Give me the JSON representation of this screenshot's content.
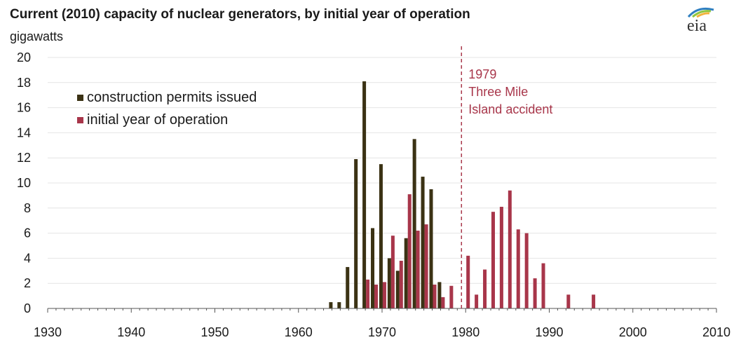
{
  "header": {
    "title": "Current (2010) capacity of nuclear generators, by initial year of operation",
    "unit": "gigawatts",
    "logo_text": "eia"
  },
  "colors": {
    "construction": "#3b3214",
    "operation": "#a8364a",
    "annotation": "#a8364a",
    "grid": "#e4e4e4",
    "axis": "#555555"
  },
  "chart_data": {
    "type": "bar",
    "title": "Current (2010) capacity of nuclear generators, by initial year of operation",
    "ylabel": "gigawatts",
    "xlabel": "",
    "xlim": [
      1930,
      2010
    ],
    "ylim": [
      0,
      20
    ],
    "x_ticks": [
      1930,
      1940,
      1950,
      1960,
      1970,
      1980,
      1990,
      2000,
      2010
    ],
    "y_ticks": [
      0,
      2,
      4,
      6,
      8,
      10,
      12,
      14,
      16,
      18,
      20
    ],
    "grid": true,
    "legend_position": "top-left",
    "series": [
      {
        "name": "construction permits issued",
        "key": "construction",
        "points": [
          {
            "year": 1964,
            "value": 0.5
          },
          {
            "year": 1965,
            "value": 0.5
          },
          {
            "year": 1966,
            "value": 3.3
          },
          {
            "year": 1967,
            "value": 11.9
          },
          {
            "year": 1968,
            "value": 18.1
          },
          {
            "year": 1969,
            "value": 6.4
          },
          {
            "year": 1970,
            "value": 11.5
          },
          {
            "year": 1971,
            "value": 4.0
          },
          {
            "year": 1972,
            "value": 3.0
          },
          {
            "year": 1973,
            "value": 5.6
          },
          {
            "year": 1974,
            "value": 13.5
          },
          {
            "year": 1975,
            "value": 10.5
          },
          {
            "year": 1976,
            "value": 9.5
          },
          {
            "year": 1977,
            "value": 2.1
          },
          {
            "year": 1978,
            "value": 0.0
          }
        ]
      },
      {
        "name": "initial year of operation",
        "key": "operation",
        "points": [
          {
            "year": 1968,
            "value": 2.3
          },
          {
            "year": 1969,
            "value": 1.9
          },
          {
            "year": 1970,
            "value": 2.1
          },
          {
            "year": 1971,
            "value": 5.8
          },
          {
            "year": 1972,
            "value": 3.8
          },
          {
            "year": 1973,
            "value": 9.1
          },
          {
            "year": 1974,
            "value": 6.2
          },
          {
            "year": 1975,
            "value": 6.7
          },
          {
            "year": 1976,
            "value": 1.9
          },
          {
            "year": 1977,
            "value": 0.9
          },
          {
            "year": 1978,
            "value": 1.8
          },
          {
            "year": 1980,
            "value": 4.2
          },
          {
            "year": 1981,
            "value": 1.1
          },
          {
            "year": 1982,
            "value": 3.1
          },
          {
            "year": 1983,
            "value": 7.7
          },
          {
            "year": 1984,
            "value": 8.1
          },
          {
            "year": 1985,
            "value": 9.4
          },
          {
            "year": 1986,
            "value": 6.3
          },
          {
            "year": 1987,
            "value": 6.0
          },
          {
            "year": 1988,
            "value": 2.4
          },
          {
            "year": 1989,
            "value": 3.6
          },
          {
            "year": 1992,
            "value": 1.1
          },
          {
            "year": 1995,
            "value": 1.1
          }
        ]
      }
    ],
    "annotation": {
      "year": 1979.5,
      "lines": [
        "1979",
        "Three Mile",
        "Island accident"
      ]
    }
  }
}
